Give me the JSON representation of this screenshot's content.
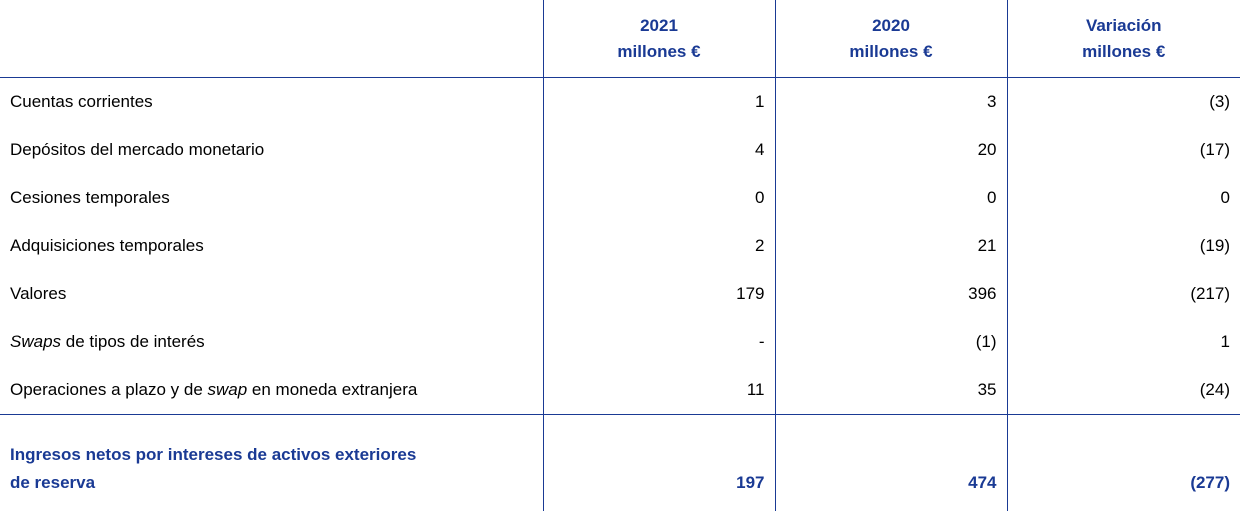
{
  "table": {
    "header": [
      [
        "2021",
        "millones €"
      ],
      [
        "2020",
        "millones €"
      ],
      [
        "Variación",
        "millones €"
      ]
    ],
    "rows": [
      {
        "label": [
          "Cuentas corrientes"
        ],
        "cells": [
          "1",
          "3",
          "(3)"
        ]
      },
      {
        "label": [
          "Depósitos del mercado monetario"
        ],
        "cells": [
          "4",
          "20",
          "(17)"
        ]
      },
      {
        "label": [
          "Cesiones temporales"
        ],
        "cells": [
          "0",
          "0",
          "0"
        ]
      },
      {
        "label": [
          "Adquisiciones temporales"
        ],
        "cells": [
          "2",
          "21",
          "(19)"
        ]
      },
      {
        "label": [
          "Valores"
        ],
        "cells": [
          "179",
          "396",
          "(217)"
        ]
      },
      {
        "label": [
          "Swaps",
          " de tipos de interés"
        ],
        "cells": [
          "-",
          "(1)",
          "1"
        ]
      },
      {
        "label": [
          "Operaciones a plazo y de ",
          "swap",
          " en moneda extranjera"
        ],
        "cells": [
          "11",
          "35",
          "(24)"
        ]
      }
    ],
    "total": {
      "label": [
        "Ingresos netos por intereses de activos exteriores",
        "de reserva"
      ],
      "cells": [
        "197",
        "474",
        "(277)"
      ]
    }
  }
}
